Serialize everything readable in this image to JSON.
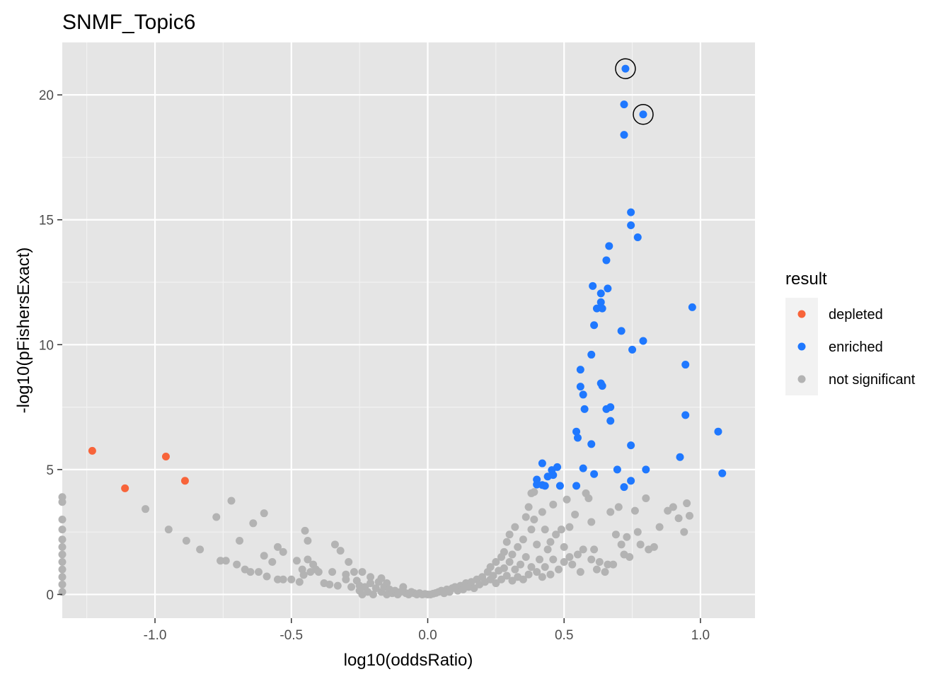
{
  "chart_data": {
    "type": "scatter",
    "title": "SNMF_Topic6",
    "xlabel": "log10(oddsRatio)",
    "ylabel": "-log10(pFishersExact)",
    "xlim": [
      -1.34,
      1.2
    ],
    "ylim": [
      -0.95,
      22.1
    ],
    "x_ticks": [
      -1.0,
      -0.5,
      0.0,
      0.5,
      1.0
    ],
    "x_tick_labels": [
      "-1.0",
      "-0.5",
      "0.0",
      "0.5",
      "1.0"
    ],
    "y_ticks": [
      0,
      5,
      10,
      15,
      20
    ],
    "y_tick_labels": [
      "0",
      "5",
      "10",
      "15",
      "20"
    ],
    "grid": true,
    "legend": {
      "title": "result",
      "position": "right",
      "entries": [
        {
          "label": "depleted",
          "color": "#F8643A"
        },
        {
          "label": "enriched",
          "color": "#1F78FF"
        },
        {
          "label": "not significant",
          "color": "#B3B3B3"
        }
      ]
    },
    "series": [
      {
        "name": "depleted",
        "color": "#F8643A",
        "points": [
          [
            -1.23,
            5.75
          ],
          [
            -1.11,
            4.25
          ],
          [
            -0.96,
            5.52
          ],
          [
            -0.89,
            4.55
          ]
        ]
      },
      {
        "name": "enriched",
        "color": "#1F78FF",
        "points": [
          [
            0.725,
            21.05
          ],
          [
            0.72,
            19.62
          ],
          [
            0.79,
            19.22
          ],
          [
            0.72,
            18.4
          ],
          [
            0.745,
            15.3
          ],
          [
            0.745,
            14.78
          ],
          [
            0.77,
            14.3
          ],
          [
            0.665,
            13.95
          ],
          [
            0.655,
            13.38
          ],
          [
            0.605,
            12.35
          ],
          [
            0.635,
            12.05
          ],
          [
            0.66,
            12.25
          ],
          [
            0.635,
            11.7
          ],
          [
            0.62,
            11.45
          ],
          [
            0.64,
            11.45
          ],
          [
            0.97,
            11.5
          ],
          [
            0.61,
            10.78
          ],
          [
            0.71,
            10.55
          ],
          [
            0.79,
            10.15
          ],
          [
            0.75,
            9.8
          ],
          [
            0.6,
            9.6
          ],
          [
            0.56,
            9.0
          ],
          [
            0.945,
            9.2
          ],
          [
            0.635,
            8.45
          ],
          [
            0.64,
            8.35
          ],
          [
            0.56,
            8.32
          ],
          [
            0.57,
            8.0
          ],
          [
            0.575,
            7.42
          ],
          [
            0.655,
            7.42
          ],
          [
            0.67,
            7.5
          ],
          [
            0.945,
            7.18
          ],
          [
            0.67,
            6.95
          ],
          [
            0.545,
            6.52
          ],
          [
            0.55,
            6.27
          ],
          [
            0.6,
            6.02
          ],
          [
            0.745,
            5.97
          ],
          [
            1.065,
            6.52
          ],
          [
            0.925,
            5.5
          ],
          [
            0.42,
            5.25
          ],
          [
            0.455,
            4.98
          ],
          [
            0.475,
            5.1
          ],
          [
            0.57,
            5.05
          ],
          [
            0.695,
            5.0
          ],
          [
            0.8,
            5.0
          ],
          [
            0.61,
            4.82
          ],
          [
            1.08,
            4.85
          ],
          [
            0.4,
            4.6
          ],
          [
            0.44,
            4.72
          ],
          [
            0.46,
            4.78
          ],
          [
            0.745,
            4.55
          ],
          [
            0.42,
            4.38
          ],
          [
            0.43,
            4.35
          ],
          [
            0.4,
            4.4
          ],
          [
            0.485,
            4.35
          ],
          [
            0.545,
            4.35
          ],
          [
            0.72,
            4.3
          ]
        ]
      },
      {
        "name": "not significant",
        "color": "#B3B3B3",
        "points": [
          [
            -1.34,
            3.9
          ],
          [
            -1.34,
            3.7
          ],
          [
            -1.34,
            3.0
          ],
          [
            -1.34,
            2.6
          ],
          [
            -1.34,
            2.2
          ],
          [
            -1.34,
            1.9
          ],
          [
            -1.34,
            1.6
          ],
          [
            -1.34,
            1.3
          ],
          [
            -1.34,
            1.0
          ],
          [
            -1.34,
            0.7
          ],
          [
            -1.34,
            0.4
          ],
          [
            -1.34,
            0.1
          ],
          [
            -1.035,
            3.42
          ],
          [
            -0.95,
            2.6
          ],
          [
            -0.885,
            2.15
          ],
          [
            -0.835,
            1.8
          ],
          [
            -0.775,
            3.1
          ],
          [
            -0.72,
            3.75
          ],
          [
            -0.76,
            1.35
          ],
          [
            -0.74,
            1.35
          ],
          [
            -0.7,
            1.2
          ],
          [
            -0.69,
            2.15
          ],
          [
            -0.67,
            1.0
          ],
          [
            -0.64,
            2.85
          ],
          [
            -0.6,
            3.25
          ],
          [
            -0.65,
            0.9
          ],
          [
            -0.62,
            0.9
          ],
          [
            -0.6,
            1.55
          ],
          [
            -0.57,
            1.3
          ],
          [
            -0.59,
            0.72
          ],
          [
            -0.55,
            0.6
          ],
          [
            -0.53,
            0.6
          ],
          [
            -0.55,
            1.9
          ],
          [
            -0.53,
            1.7
          ],
          [
            -0.5,
            0.6
          ],
          [
            -0.48,
            1.35
          ],
          [
            -0.47,
            0.5
          ],
          [
            -0.46,
            1.0
          ],
          [
            -0.455,
            0.78
          ],
          [
            -0.44,
            1.4
          ],
          [
            -0.43,
            0.9
          ],
          [
            -0.45,
            2.55
          ],
          [
            -0.44,
            2.15
          ],
          [
            -0.42,
            1.2
          ],
          [
            -0.41,
            1.0
          ],
          [
            -0.4,
            0.9
          ],
          [
            -0.38,
            0.45
          ],
          [
            -0.36,
            0.4
          ],
          [
            -0.35,
            0.9
          ],
          [
            -0.33,
            0.35
          ],
          [
            -0.34,
            2.0
          ],
          [
            -0.32,
            1.75
          ],
          [
            -0.3,
            0.6
          ],
          [
            -0.3,
            0.8
          ],
          [
            -0.29,
            1.3
          ],
          [
            -0.28,
            0.3
          ],
          [
            -0.27,
            0.9
          ],
          [
            -0.26,
            0.55
          ],
          [
            -0.25,
            0.35
          ],
          [
            -0.25,
            0.15
          ],
          [
            -0.24,
            0.0
          ],
          [
            -0.24,
            0.9
          ],
          [
            -0.23,
            0.3
          ],
          [
            -0.22,
            0.1
          ],
          [
            -0.21,
            0.7
          ],
          [
            -0.21,
            0.45
          ],
          [
            -0.2,
            0.0
          ],
          [
            -0.19,
            0.25
          ],
          [
            -0.18,
            0.5
          ],
          [
            -0.17,
            0.1
          ],
          [
            -0.17,
            0.65
          ],
          [
            -0.16,
            0.3
          ],
          [
            -0.15,
            0.0
          ],
          [
            -0.15,
            0.45
          ],
          [
            -0.14,
            0.2
          ],
          [
            -0.13,
            0.05
          ],
          [
            -0.12,
            0.15
          ],
          [
            -0.11,
            0.0
          ],
          [
            -0.1,
            0.1
          ],
          [
            -0.09,
            0.3
          ],
          [
            -0.08,
            0.05
          ],
          [
            -0.07,
            0.0
          ],
          [
            -0.06,
            0.1
          ],
          [
            -0.05,
            0.05
          ],
          [
            -0.04,
            0.0
          ],
          [
            -0.03,
            0.05
          ],
          [
            -0.02,
            0.0
          ],
          [
            -0.01,
            0.02
          ],
          [
            0.0,
            0.0
          ],
          [
            0.01,
            0.0
          ],
          [
            0.02,
            0.03
          ],
          [
            0.03,
            0.06
          ],
          [
            0.04,
            0.1
          ],
          [
            0.05,
            0.15
          ],
          [
            0.06,
            0.05
          ],
          [
            0.07,
            0.2
          ],
          [
            0.08,
            0.1
          ],
          [
            0.09,
            0.25
          ],
          [
            0.1,
            0.3
          ],
          [
            0.11,
            0.15
          ],
          [
            0.12,
            0.35
          ],
          [
            0.13,
            0.2
          ],
          [
            0.14,
            0.45
          ],
          [
            0.15,
            0.3
          ],
          [
            0.16,
            0.5
          ],
          [
            0.17,
            0.25
          ],
          [
            0.18,
            0.6
          ],
          [
            0.19,
            0.4
          ],
          [
            0.2,
            0.7
          ],
          [
            0.21,
            0.5
          ],
          [
            0.22,
            0.9
          ],
          [
            0.23,
            0.6
          ],
          [
            0.23,
            1.1
          ],
          [
            0.24,
            0.75
          ],
          [
            0.25,
            1.3
          ],
          [
            0.25,
            0.45
          ],
          [
            0.26,
            0.95
          ],
          [
            0.27,
            1.5
          ],
          [
            0.27,
            0.6
          ],
          [
            0.28,
            1.7
          ],
          [
            0.28,
            1.05
          ],
          [
            0.29,
            2.1
          ],
          [
            0.29,
            0.75
          ],
          [
            0.3,
            2.4
          ],
          [
            0.3,
            1.3
          ],
          [
            0.31,
            0.55
          ],
          [
            0.31,
            1.6
          ],
          [
            0.32,
            2.7
          ],
          [
            0.32,
            1.0
          ],
          [
            0.33,
            1.9
          ],
          [
            0.33,
            0.7
          ],
          [
            0.34,
            1.2
          ],
          [
            0.35,
            2.2
          ],
          [
            0.35,
            0.6
          ],
          [
            0.36,
            3.1
          ],
          [
            0.36,
            1.5
          ],
          [
            0.37,
            3.5
          ],
          [
            0.37,
            0.8
          ],
          [
            0.38,
            4.05
          ],
          [
            0.38,
            2.6
          ],
          [
            0.38,
            1.1
          ],
          [
            0.39,
            4.1
          ],
          [
            0.39,
            3.0
          ],
          [
            0.4,
            2.0
          ],
          [
            0.4,
            0.9
          ],
          [
            0.41,
            1.4
          ],
          [
            0.42,
            3.3
          ],
          [
            0.42,
            0.7
          ],
          [
            0.43,
            2.6
          ],
          [
            0.43,
            1.1
          ],
          [
            0.44,
            1.8
          ],
          [
            0.45,
            2.1
          ],
          [
            0.45,
            0.8
          ],
          [
            0.46,
            3.6
          ],
          [
            0.46,
            1.4
          ],
          [
            0.47,
            2.4
          ],
          [
            0.48,
            1.0
          ],
          [
            0.49,
            2.6
          ],
          [
            0.5,
            1.9
          ],
          [
            0.5,
            1.3
          ],
          [
            0.51,
            3.8
          ],
          [
            0.52,
            2.7
          ],
          [
            0.52,
            1.5
          ],
          [
            0.53,
            1.2
          ],
          [
            0.54,
            3.2
          ],
          [
            0.55,
            1.6
          ],
          [
            0.56,
            0.9
          ],
          [
            0.57,
            1.8
          ],
          [
            0.58,
            4.05
          ],
          [
            0.59,
            3.85
          ],
          [
            0.6,
            1.4
          ],
          [
            0.6,
            2.9
          ],
          [
            0.61,
            1.8
          ],
          [
            0.62,
            1.0
          ],
          [
            0.63,
            1.3
          ],
          [
            0.65,
            0.9
          ],
          [
            0.66,
            1.2
          ],
          [
            0.67,
            3.3
          ],
          [
            0.68,
            1.2
          ],
          [
            0.69,
            2.4
          ],
          [
            0.7,
            3.5
          ],
          [
            0.71,
            2.0
          ],
          [
            0.72,
            1.6
          ],
          [
            0.73,
            2.3
          ],
          [
            0.74,
            1.5
          ],
          [
            0.76,
            3.35
          ],
          [
            0.77,
            2.5
          ],
          [
            0.78,
            2.0
          ],
          [
            0.8,
            3.85
          ],
          [
            0.81,
            1.8
          ],
          [
            0.83,
            1.9
          ],
          [
            0.85,
            2.7
          ],
          [
            0.88,
            3.35
          ],
          [
            0.9,
            3.5
          ],
          [
            0.92,
            3.05
          ],
          [
            0.94,
            2.5
          ],
          [
            0.95,
            3.65
          ],
          [
            0.96,
            3.15
          ]
        ]
      }
    ],
    "highlighted": [
      [
        0.725,
        21.05
      ],
      [
        0.79,
        19.22
      ]
    ]
  }
}
